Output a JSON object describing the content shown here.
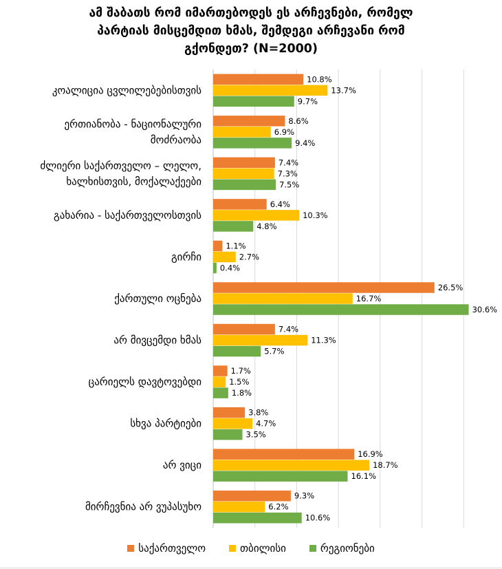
{
  "chart_data": {
    "type": "bar",
    "orientation": "horizontal",
    "title_lines": [
      "ამ შაბათს რომ იმართებოდეს ეს არჩევნები, რომელ",
      "პარტიას მისცემდით ხმას, შემდეგი არჩევანი რომ",
      "გქონდეთ? (N=2000)"
    ],
    "categories": [
      "კოალიცია ცვლილებებისთვის",
      "ერთიანობა - ნაციონალური მოძრაობა",
      "ძლიერი საქართველო – ლელო, ხალხისთვის, მოქალაქეები",
      "გახარია - საქართველოსთვის",
      "გირჩი",
      "ქართული ოცნება",
      "არ მივცემდი ხმას",
      "ცარიელს დავტოვებდი",
      "სხვა პარტიები",
      "არ ვიცი",
      "მირჩევნია არ ვუპასუხო"
    ],
    "category_label_lines": [
      [
        "კოალიცია ცვლილებებისთვის"
      ],
      [
        "ერთიანობა - ნაციონალური",
        "მოძრაობა"
      ],
      [
        "ძლიერი საქართველო – ლელო,",
        "ხალხისთვის, მოქალაქეები"
      ],
      [
        "გახარია - საქართველოსთვის"
      ],
      [
        "გირჩი"
      ],
      [
        "ქართული ოცნება"
      ],
      [
        "არ მივცემდი ხმას"
      ],
      [
        "ცარიელს დავტოვებდი"
      ],
      [
        "სხვა პარტიები"
      ],
      [
        "არ ვიცი"
      ],
      [
        "მირჩევნია არ ვუპასუხო"
      ]
    ],
    "series": [
      {
        "name": "საქართველო",
        "color": "#ED7D31",
        "values": [
          10.8,
          8.6,
          7.4,
          6.4,
          1.1,
          26.5,
          7.4,
          1.7,
          3.8,
          16.9,
          9.3
        ],
        "labels": [
          "10.8%",
          "8.6%",
          "7.4%",
          "6.4%",
          "1.1%",
          "26.5%",
          "7.4%",
          "1.7%",
          "3.8%",
          "16.9%",
          "9.3%"
        ]
      },
      {
        "name": "თბილისი",
        "color": "#FFC000",
        "values": [
          13.7,
          6.9,
          7.3,
          10.3,
          2.7,
          16.7,
          11.3,
          1.5,
          4.7,
          18.7,
          6.2
        ],
        "labels": [
          "13.7%",
          "6.9%",
          "7.3%",
          "10.3%",
          "2.7%",
          "16.7%",
          "11.3%",
          "1.5%",
          "4.7%",
          "18.7%",
          "6.2%"
        ]
      },
      {
        "name": "რეგიონები",
        "color": "#70AD47",
        "values": [
          9.7,
          9.4,
          7.5,
          4.8,
          0.4,
          30.6,
          5.7,
          1.8,
          3.5,
          16.1,
          10.6
        ],
        "labels": [
          "9.7%",
          "9.4%",
          "7.5%",
          "4.8%",
          "0.4%",
          "30.6%",
          "5.7%",
          "1.8%",
          "3.5%",
          "16.1%",
          "10.6%"
        ]
      }
    ],
    "xlim": [
      0,
      35
    ],
    "grid": true,
    "legend_position": "bottom"
  }
}
